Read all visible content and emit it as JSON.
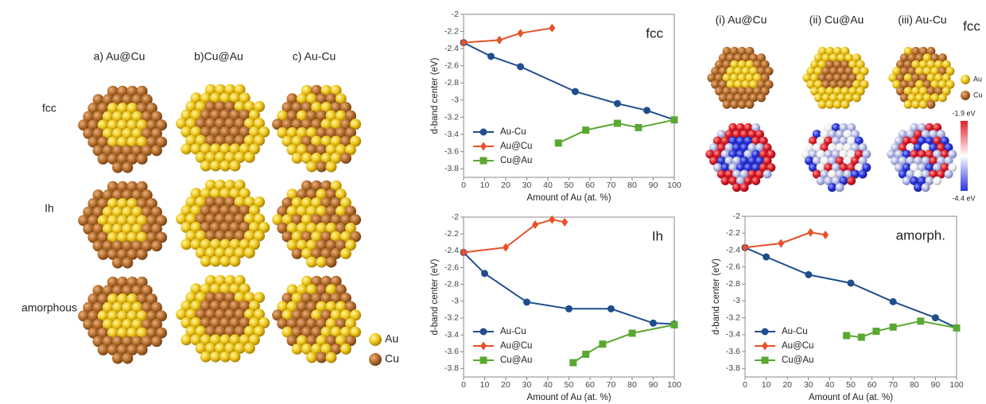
{
  "left_panel": {
    "columns": [
      "a) Au@Cu",
      "b)Cu@Au",
      "c) Au-Cu"
    ],
    "rows": [
      "fcc",
      "Ih",
      "amorphous"
    ],
    "legend": [
      "Au",
      "Cu"
    ]
  },
  "right_panel": {
    "columns": [
      "(i) Au@Cu",
      "(ii) Cu@Au",
      "(iii) Au-Cu"
    ],
    "structure": "fcc",
    "legend": [
      "Au",
      "Cu"
    ],
    "colorbar": {
      "max_label": "-1.9 eV",
      "min_label": "-4.4 eV"
    }
  },
  "chart_data": [
    {
      "type": "line",
      "annotation": "fcc",
      "x_label": "Amount of Au (at. %)",
      "y_label": "d-band center (eV)",
      "xlim": [
        0,
        100
      ],
      "xticks": [
        0,
        10,
        20,
        30,
        40,
        50,
        60,
        70,
        80,
        90,
        100
      ],
      "ylim": [
        -3.9,
        -2
      ],
      "yticks": [
        -2,
        -2.2,
        -2.4,
        -2.6,
        -2.8,
        -3,
        -3.2,
        -3.4,
        -3.6,
        -3.8
      ],
      "legend": "lower left",
      "series": [
        {
          "name": "Au-Cu",
          "color": "#1f4e8c",
          "marker": "circle",
          "x": [
            0,
            13,
            27,
            53,
            73,
            87,
            100
          ],
          "values": [
            -2.33,
            -2.49,
            -2.61,
            -2.9,
            -3.04,
            -3.12,
            -3.23
          ]
        },
        {
          "name": "Au@Cu",
          "color": "#e8512a",
          "marker": "diamond",
          "x": [
            0,
            17,
            27,
            42
          ],
          "values": [
            -2.33,
            -2.3,
            -2.22,
            -2.16
          ]
        },
        {
          "name": "Cu@Au",
          "color": "#5aa832",
          "marker": "square",
          "x": [
            45,
            58,
            73,
            83,
            100
          ],
          "values": [
            -3.5,
            -3.35,
            -3.27,
            -3.32,
            -3.23
          ]
        }
      ]
    },
    {
      "type": "line",
      "annotation": "Ih",
      "x_label": "Amount of Au (at. %)",
      "y_label": "d-band center (eV)",
      "xlim": [
        0,
        100
      ],
      "xticks": [
        0,
        10,
        20,
        30,
        40,
        50,
        60,
        70,
        80,
        90,
        100
      ],
      "ylim": [
        -3.9,
        -2
      ],
      "yticks": [
        -2,
        -2.2,
        -2.4,
        -2.6,
        -2.8,
        -3,
        -3.2,
        -3.4,
        -3.6,
        -3.8
      ],
      "legend": "lower left",
      "series": [
        {
          "name": "Au-Cu",
          "color": "#1f4e8c",
          "marker": "circle",
          "x": [
            0,
            10,
            30,
            50,
            70,
            90,
            100
          ],
          "values": [
            -2.42,
            -2.67,
            -3.01,
            -3.09,
            -3.09,
            -3.26,
            -3.27
          ]
        },
        {
          "name": "Au@Cu",
          "color": "#e8512a",
          "marker": "diamond",
          "x": [
            0,
            20,
            34,
            42,
            48
          ],
          "values": [
            -2.42,
            -2.36,
            -2.09,
            -2.03,
            -2.06
          ]
        },
        {
          "name": "Cu@Au",
          "color": "#5aa832",
          "marker": "square",
          "x": [
            52,
            58,
            66,
            80,
            100
          ],
          "values": [
            -3.73,
            -3.63,
            -3.51,
            -3.38,
            -3.28
          ]
        }
      ]
    },
    {
      "type": "line",
      "annotation": "amorph.",
      "x_label": "Amount of Au (at. %)",
      "y_label": "d-band center (eV)",
      "xlim": [
        0,
        100
      ],
      "xticks": [
        0,
        10,
        20,
        30,
        40,
        50,
        60,
        70,
        80,
        90,
        100
      ],
      "ylim": [
        -3.9,
        -2
      ],
      "yticks": [
        -2,
        -2.2,
        -2.4,
        -2.6,
        -2.8,
        -3,
        -3.2,
        -3.4,
        -3.6,
        -3.8
      ],
      "legend": "lower left",
      "series": [
        {
          "name": "Au-Cu",
          "color": "#1f4e8c",
          "marker": "circle",
          "x": [
            0,
            10,
            30,
            50,
            70,
            90,
            100
          ],
          "values": [
            -2.37,
            -2.48,
            -2.69,
            -2.79,
            -3.01,
            -3.2,
            -3.32
          ]
        },
        {
          "name": "Au@Cu",
          "color": "#e8512a",
          "marker": "diamond",
          "x": [
            0,
            17,
            31,
            38
          ],
          "values": [
            -2.37,
            -2.32,
            -2.19,
            -2.22
          ]
        },
        {
          "name": "Cu@Au",
          "color": "#5aa832",
          "marker": "square",
          "x": [
            48,
            55,
            62,
            70,
            83,
            100
          ],
          "values": [
            -3.41,
            -3.43,
            -3.36,
            -3.31,
            -3.24,
            -3.32
          ]
        }
      ]
    }
  ]
}
